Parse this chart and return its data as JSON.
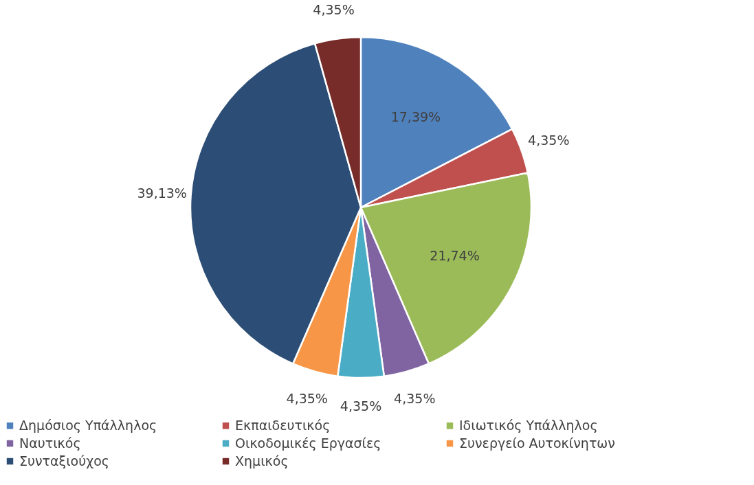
{
  "chart_data": {
    "type": "pie",
    "categories": [
      "Δημόσιος Υπάλληλος",
      "Εκπαιδευτικός",
      "Ιδιωτικός Υπάλληλος",
      "Ναυτικός",
      "Οικοδομικές Εργασίες",
      "Συνεργείο Αυτοκίνητων",
      "Συνταξιούχος",
      "Χημικός"
    ],
    "values": [
      17.39,
      4.35,
      21.74,
      4.35,
      4.35,
      4.35,
      39.13,
      4.35
    ],
    "colors": [
      "#4f81bd",
      "#c0504d",
      "#9bbb59",
      "#8064a2",
      "#4bacc6",
      "#f79646",
      "#2c4d75",
      "#772c2a"
    ],
    "value_labels": [
      "17,39%",
      "4,35%",
      "21,74%",
      "4,35%",
      "4,35%",
      "4,35%",
      "39,13%",
      "4,35%"
    ],
    "legend": "bottom"
  }
}
